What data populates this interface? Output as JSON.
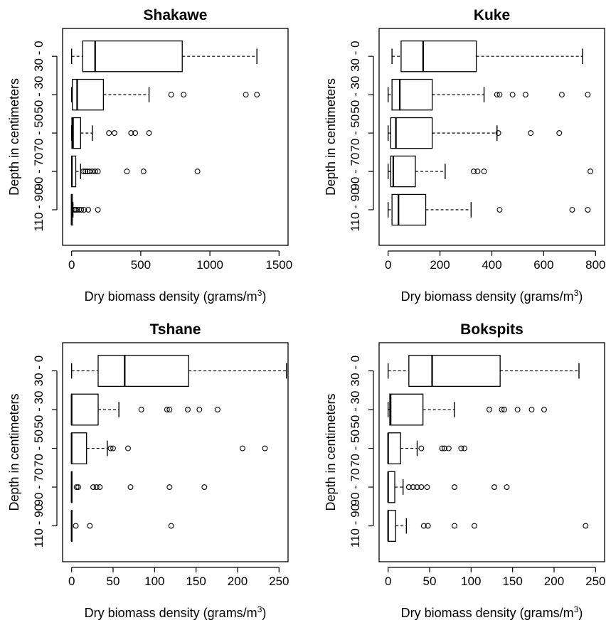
{
  "chart_data": [
    {
      "type": "boxplot",
      "orientation": "horizontal",
      "title": "Shakawe",
      "xlabel": "Dry biomass density (grams/m",
      "xlabel_sup": "3",
      "xlabel_close": ")",
      "ylabel": "Depth in centimeters",
      "xlim": [
        0,
        1500
      ],
      "xticks": [
        0,
        500,
        1000,
        1500
      ],
      "categories": [
        "0 - 30",
        "30 - 50",
        "50 - 70",
        "70 - 90",
        "90 - 110"
      ],
      "y_tick_labels": [
        "0",
        "30",
        "50",
        "70",
        "90",
        "110"
      ],
      "boxes": [
        {
          "whisker_low": 0,
          "q1": 80,
          "median": 170,
          "q3": 800,
          "whisker_high": 1340,
          "outliers": []
        },
        {
          "whisker_low": 0,
          "q1": 5,
          "median": 40,
          "q3": 230,
          "whisker_high": 560,
          "outliers": [
            720,
            810,
            1260,
            1340
          ]
        },
        {
          "whisker_low": 0,
          "q1": 2,
          "median": 10,
          "q3": 65,
          "whisker_high": 150,
          "outliers": [
            270,
            310,
            430,
            460,
            560
          ]
        },
        {
          "whisker_low": 0,
          "q1": 0,
          "median": 2,
          "q3": 30,
          "whisker_high": 65,
          "outliers": [
            85,
            100,
            115,
            130,
            150,
            170,
            190,
            400,
            520,
            910
          ]
        },
        {
          "whisker_low": 0,
          "q1": 0,
          "median": 0,
          "q3": 5,
          "whisker_high": 10,
          "outliers": [
            20,
            30,
            40,
            55,
            70,
            90,
            120,
            190
          ]
        }
      ]
    },
    {
      "type": "boxplot",
      "orientation": "horizontal",
      "title": "Kuke",
      "xlabel": "Dry biomass density (grams/m",
      "xlabel_sup": "3",
      "xlabel_close": ")",
      "ylabel": "Depth in centimeters",
      "xlim": [
        0,
        800
      ],
      "xticks": [
        0,
        200,
        400,
        600,
        800
      ],
      "categories": [
        "0 - 30",
        "30 - 50",
        "50 - 70",
        "70 - 90",
        "90 - 110"
      ],
      "y_tick_labels": [
        "0",
        "30",
        "50",
        "70",
        "90",
        "110"
      ],
      "boxes": [
        {
          "whisker_low": 15,
          "q1": 50,
          "median": 135,
          "q3": 340,
          "whisker_high": 750,
          "outliers": []
        },
        {
          "whisker_low": 0,
          "q1": 15,
          "median": 45,
          "q3": 170,
          "whisker_high": 370,
          "outliers": [
            420,
            430,
            480,
            530,
            670,
            770
          ]
        },
        {
          "whisker_low": 0,
          "q1": 10,
          "median": 30,
          "q3": 170,
          "whisker_high": 420,
          "outliers": [
            425,
            550,
            660
          ]
        },
        {
          "whisker_low": 0,
          "q1": 10,
          "median": 20,
          "q3": 105,
          "whisker_high": 220,
          "outliers": [
            330,
            345,
            370,
            780
          ]
        },
        {
          "whisker_low": 0,
          "q1": 15,
          "median": 40,
          "q3": 145,
          "whisker_high": 320,
          "outliers": [
            430,
            710,
            770
          ]
        }
      ]
    },
    {
      "type": "boxplot",
      "orientation": "horizontal",
      "title": "Tshane",
      "xlabel": "Dry biomass density (grams/m",
      "xlabel_sup": "3",
      "xlabel_close": ")",
      "ylabel": "Depth in centimeters",
      "xlim": [
        0,
        250
      ],
      "xticks": [
        0,
        50,
        100,
        150,
        200,
        250
      ],
      "categories": [
        "0 - 30",
        "30 - 50",
        "50 - 70",
        "70 - 90",
        "90 - 110"
      ],
      "y_tick_labels": [
        "0",
        "30",
        "50",
        "70",
        "90",
        "110"
      ],
      "boxes": [
        {
          "whisker_low": 0,
          "q1": 32,
          "median": 64,
          "q3": 141,
          "whisker_high": 259,
          "outliers": []
        },
        {
          "whisker_low": 0,
          "q1": 0,
          "median": 0,
          "q3": 32,
          "whisker_high": 57,
          "outliers": [
            84,
            115,
            118,
            140,
            154,
            176
          ]
        },
        {
          "whisker_low": 0,
          "q1": 0,
          "median": 0,
          "q3": 18,
          "whisker_high": 43,
          "outliers": [
            47,
            50,
            68,
            206,
            233
          ]
        },
        {
          "whisker_low": 0,
          "q1": 0,
          "median": 0,
          "q3": 0,
          "whisker_high": 0,
          "outliers": [
            6,
            8,
            26,
            30,
            34,
            71,
            118,
            160
          ]
        },
        {
          "whisker_low": 0,
          "q1": 0,
          "median": 0,
          "q3": 0,
          "whisker_high": 0,
          "outliers": [
            5,
            22,
            120
          ]
        }
      ]
    },
    {
      "type": "boxplot",
      "orientation": "horizontal",
      "title": "Bokspits",
      "xlabel": "Dry biomass density (grams/m",
      "xlabel_sup": "3",
      "xlabel_close": ")",
      "ylabel": "Depth in centimeters",
      "xlim": [
        0,
        250
      ],
      "xticks": [
        0,
        50,
        100,
        150,
        200,
        250
      ],
      "categories": [
        "0 - 30",
        "30 - 50",
        "50 - 70",
        "70 - 90",
        "90 - 110"
      ],
      "y_tick_labels": [
        "0",
        "30",
        "50",
        "70",
        "90",
        "110"
      ],
      "boxes": [
        {
          "whisker_low": 0,
          "q1": 25,
          "median": 53,
          "q3": 135,
          "whisker_high": 230,
          "outliers": []
        },
        {
          "whisker_low": 0,
          "q1": 2,
          "median": 3,
          "q3": 42,
          "whisker_high": 80,
          "outliers": [
            122,
            137,
            140,
            156,
            173,
            188
          ]
        },
        {
          "whisker_low": 0,
          "q1": 0,
          "median": 0,
          "q3": 15,
          "whisker_high": 35,
          "outliers": [
            40,
            65,
            68,
            73,
            88,
            92
          ]
        },
        {
          "whisker_low": 0,
          "q1": 0,
          "median": 0,
          "q3": 8,
          "whisker_high": 18,
          "outliers": [
            25,
            30,
            35,
            40,
            47,
            80,
            128,
            143
          ]
        },
        {
          "whisker_low": 0,
          "q1": 0,
          "median": 0,
          "q3": 9,
          "whisker_high": 22,
          "outliers": [
            43,
            48,
            80,
            104,
            238
          ]
        }
      ]
    }
  ]
}
